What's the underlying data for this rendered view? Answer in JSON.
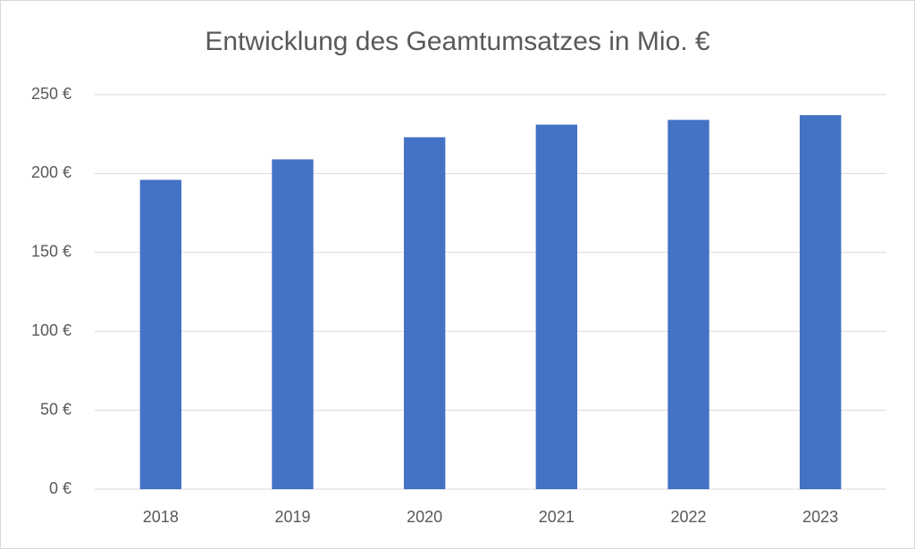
{
  "chart_data": {
    "type": "bar",
    "title": "Entwicklung des Geamtumsatzes in Mio. €",
    "categories": [
      "2018",
      "2019",
      "2020",
      "2021",
      "2022",
      "2023"
    ],
    "values": [
      196,
      209,
      223,
      231,
      234,
      237
    ],
    "color": "#4472c4",
    "ylim": [
      0,
      250
    ],
    "yticks": [
      {
        "value": 0,
        "label": "0 €"
      },
      {
        "value": 50,
        "label": "50 €"
      },
      {
        "value": 100,
        "label": "100 €"
      },
      {
        "value": 150,
        "label": "150 €"
      },
      {
        "value": 200,
        "label": "200 €"
      },
      {
        "value": 250,
        "label": "250 €"
      }
    ],
    "grid": true
  }
}
